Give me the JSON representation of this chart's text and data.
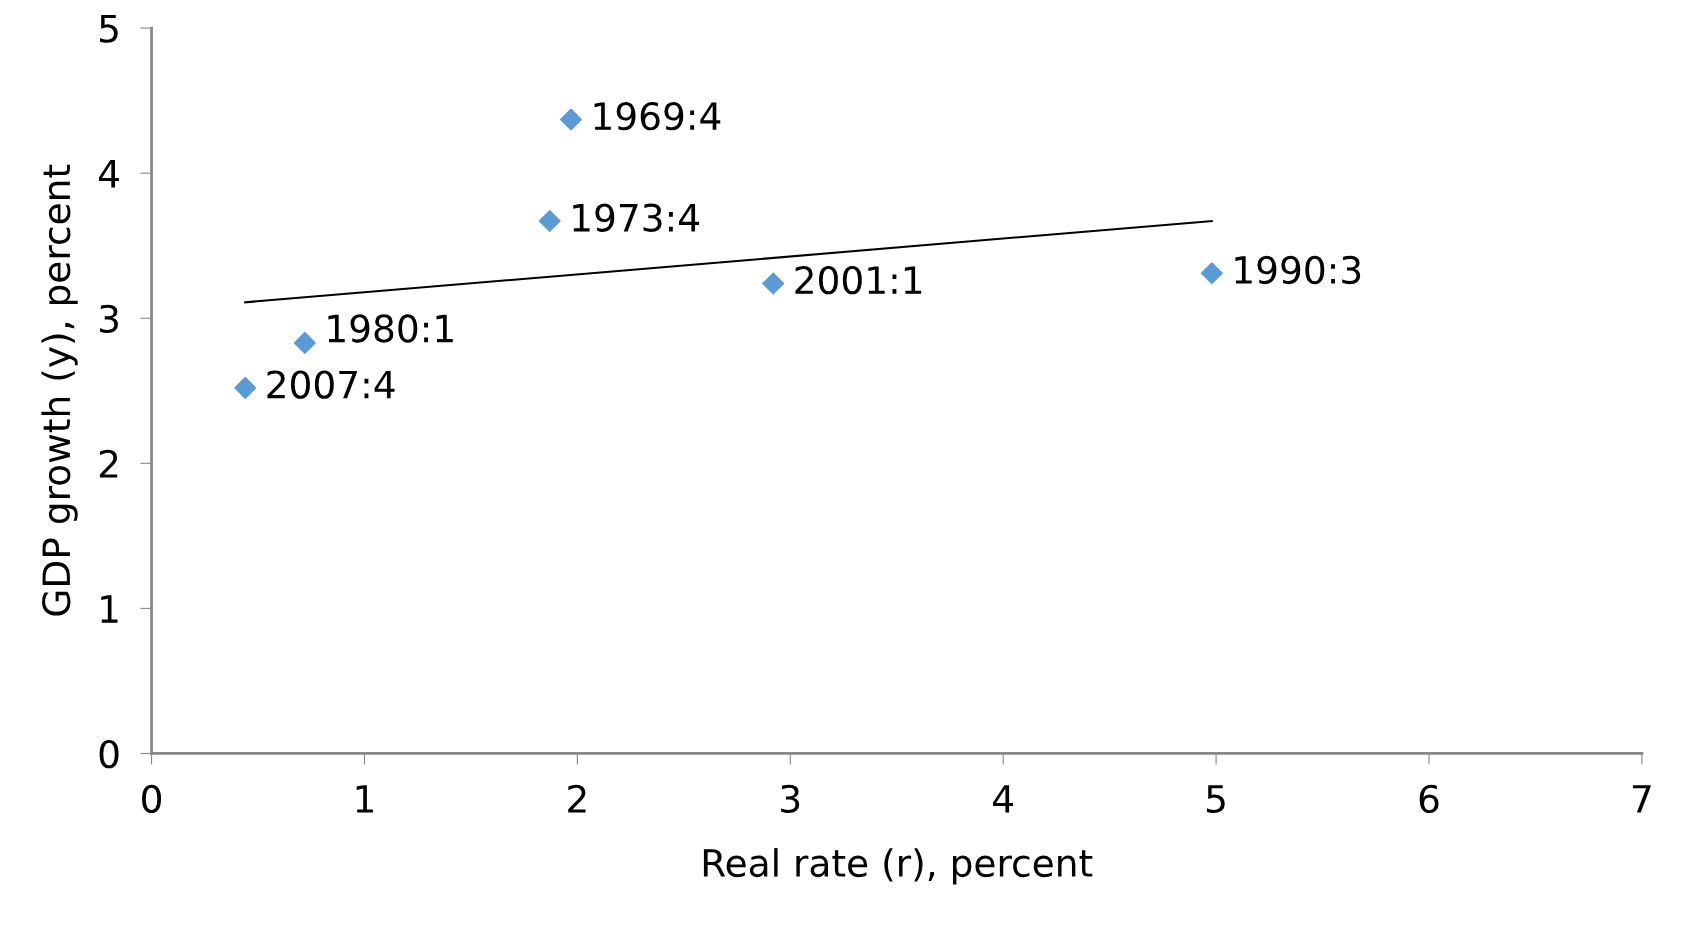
{
  "chart_data": {
    "type": "scatter",
    "xlabel": "Real rate (r), percent",
    "ylabel": "GDP growth (y), percent",
    "xlim": [
      0,
      7
    ],
    "xticks": [
      0,
      1,
      2,
      3,
      4,
      5,
      6,
      7
    ],
    "ylim": [
      0,
      5
    ],
    "yticks": [
      0,
      1,
      2,
      3,
      4,
      5
    ],
    "grid": false,
    "marker": "diamond",
    "series": [
      {
        "color": "#5b9bd5",
        "x": [
          0.44,
          0.72,
          1.87,
          1.97,
          2.92,
          4.98
        ],
        "values": [
          2.52,
          2.83,
          3.67,
          4.37,
          3.24,
          3.31
        ]
      },
      {
        "type": "line",
        "color": "#000000",
        "marker": "none",
        "x": [
          0.44,
          4.98
        ],
        "values": [
          3.11,
          3.67
        ]
      }
    ],
    "annotations": [
      {
        "text": "2007:4",
        "x": 0.44,
        "y": 2.52
      },
      {
        "text": "1980:1",
        "x": 0.72,
        "y": 2.83
      },
      {
        "text": "1973:4",
        "x": 1.87,
        "y": 3.67
      },
      {
        "text": "1969:4",
        "x": 1.97,
        "y": 4.37
      },
      {
        "text": "2001:1",
        "x": 2.92,
        "y": 3.24
      },
      {
        "text": "1990:3",
        "x": 4.98,
        "y": 3.31
      }
    ]
  }
}
